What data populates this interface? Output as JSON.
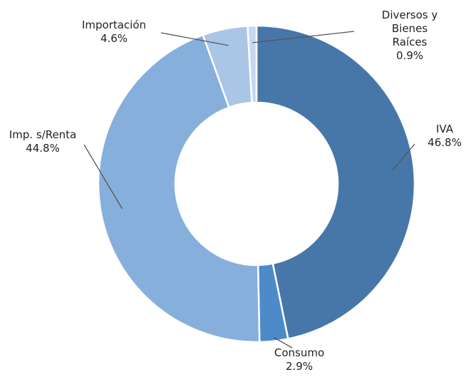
{
  "chart_data": {
    "type": "pie",
    "donut": true,
    "categories": [
      "IVA",
      "Consumo",
      "Imp. s/Renta",
      "Importación",
      "Diversos y\nBienes Raíces"
    ],
    "values": [
      46.8,
      2.9,
      44.8,
      4.6,
      0.9
    ],
    "value_labels": [
      "46.8%",
      "2.9%",
      "44.8%",
      "4.6%",
      "0.9%"
    ],
    "colors": [
      "#4677a8",
      "#4f8ac8",
      "#86afdc",
      "#aac6e7",
      "#c5d8ef"
    ]
  }
}
